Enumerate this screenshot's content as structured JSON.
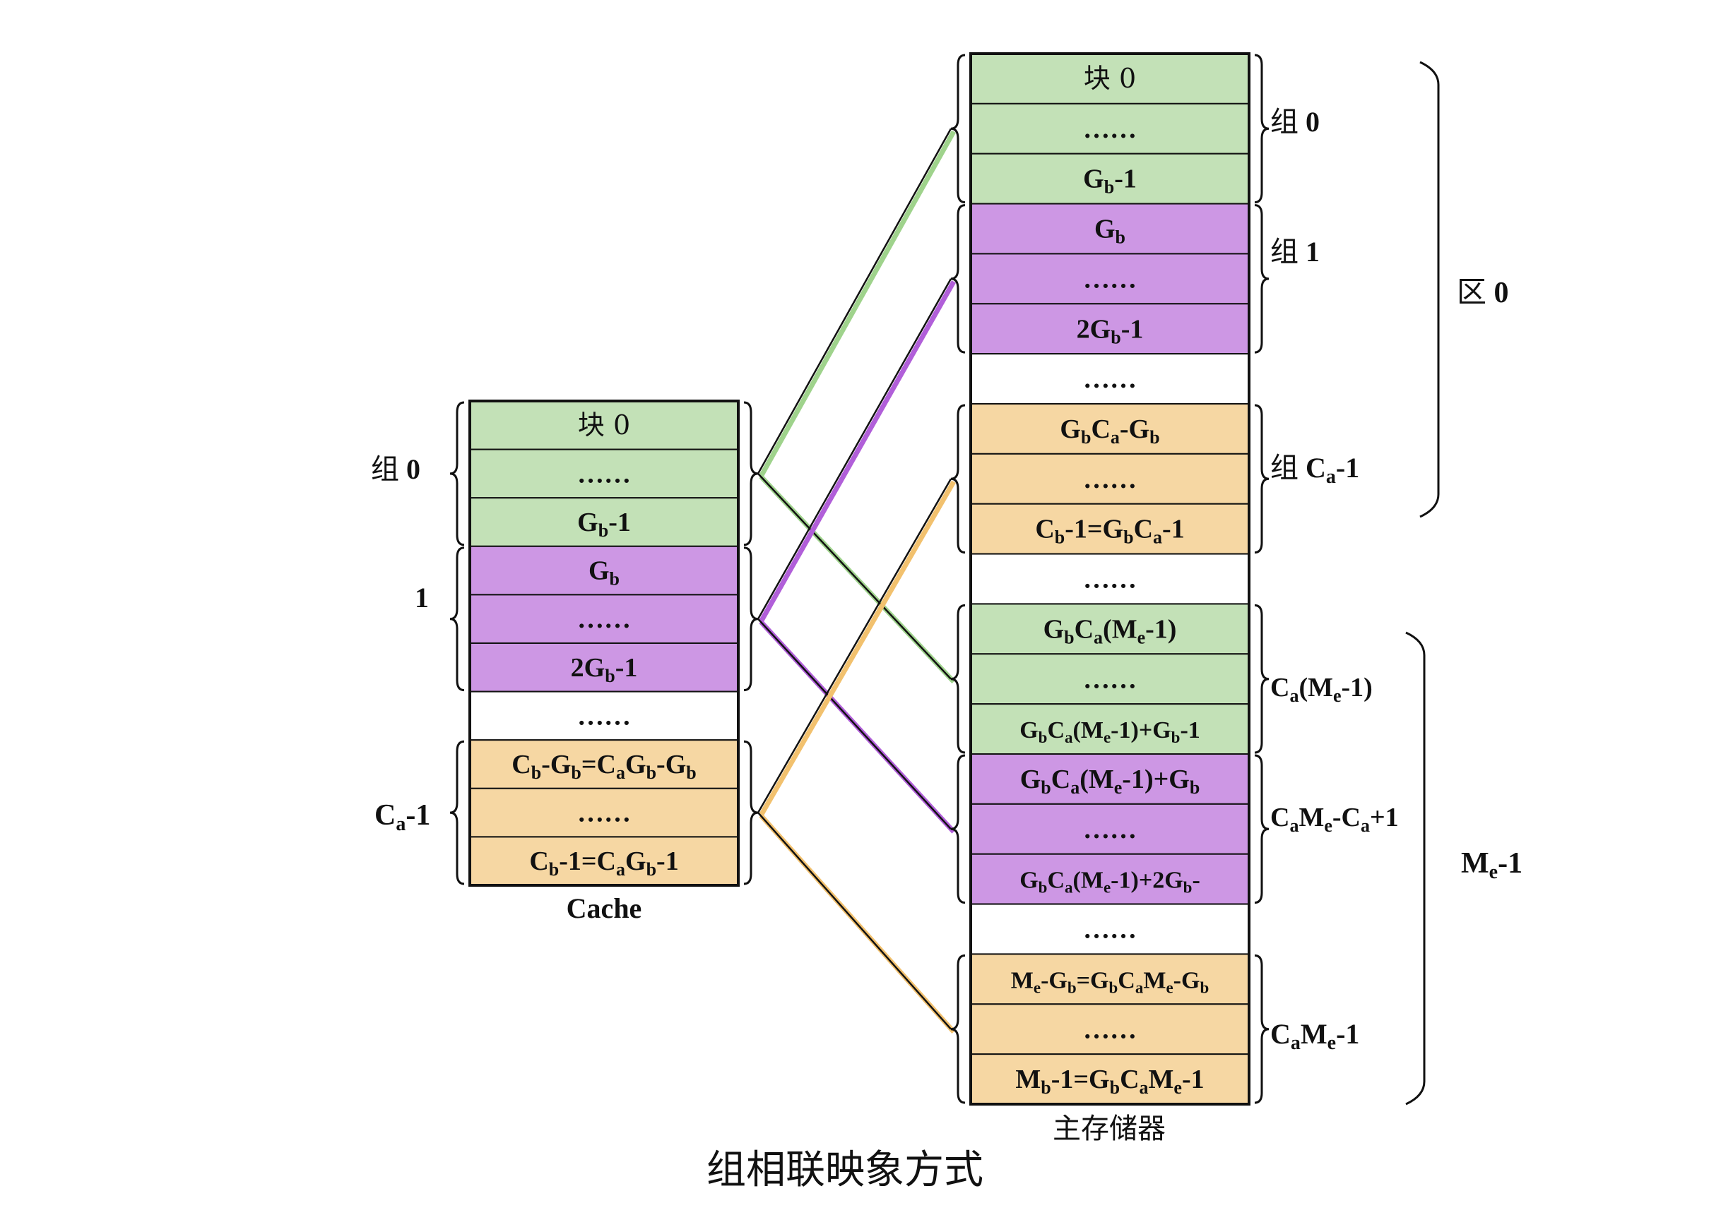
{
  "colors": {
    "green": "#c3e1b7",
    "purple": "#cd97e4",
    "orange": "#f6d7a3",
    "white": "#ffffff",
    "border": "#111111"
  },
  "cache": {
    "title": "Cache",
    "cells": [
      {
        "text": "块 0",
        "color": "green"
      },
      {
        "text": "……",
        "color": "green"
      },
      {
        "text": "Gb-1",
        "color": "green"
      },
      {
        "text": "Gb",
        "color": "purple"
      },
      {
        "text": "……",
        "color": "purple"
      },
      {
        "text": "2Gb-1",
        "color": "purple"
      },
      {
        "text": "……",
        "color": "white"
      },
      {
        "text": "Cb-Gb=CaGb-Gb",
        "color": "orange"
      },
      {
        "text": "……",
        "color": "orange"
      },
      {
        "text": "Cb-1=CaGb-1",
        "color": "orange"
      }
    ],
    "group_labels": [
      "组 0",
      "1",
      "Ca-1"
    ]
  },
  "memory": {
    "title": "主存储器",
    "cells": [
      {
        "text": "块 0",
        "color": "green"
      },
      {
        "text": "……",
        "color": "green"
      },
      {
        "text": "Gb-1",
        "color": "green"
      },
      {
        "text": "Gb",
        "color": "purple"
      },
      {
        "text": "……",
        "color": "purple"
      },
      {
        "text": "2Gb-1",
        "color": "purple"
      },
      {
        "text": "……",
        "color": "white"
      },
      {
        "text": "GbCa-Gb",
        "color": "orange"
      },
      {
        "text": "……",
        "color": "orange"
      },
      {
        "text": "Cb-1=GbCa-1",
        "color": "orange"
      },
      {
        "text": "……",
        "color": "white"
      },
      {
        "text": "GbCa(Me-1)",
        "color": "green"
      },
      {
        "text": "……",
        "color": "green"
      },
      {
        "text": "GbCa(Me-1)+Gb-1",
        "color": "green"
      },
      {
        "text": "GbCa(Me-1)+Gb",
        "color": "purple"
      },
      {
        "text": "……",
        "color": "purple"
      },
      {
        "text": "GbCa(Me-1)+2Gb-",
        "color": "purple"
      },
      {
        "text": "……",
        "color": "white"
      },
      {
        "text": "Me-Gb=GbCaMe-Gb",
        "color": "orange"
      },
      {
        "text": "……",
        "color": "orange"
      },
      {
        "text": "Mb-1=GbCaMe-1",
        "color": "orange"
      }
    ],
    "group_labels": [
      "组 0",
      "组 1",
      "组 Ca-1",
      "Ca(Me-1)",
      "CaMe-Ca+1",
      "CaMe-1"
    ]
  },
  "zones": [
    "区 0",
    "Me-1"
  ],
  "caption": "组相联映象方式"
}
